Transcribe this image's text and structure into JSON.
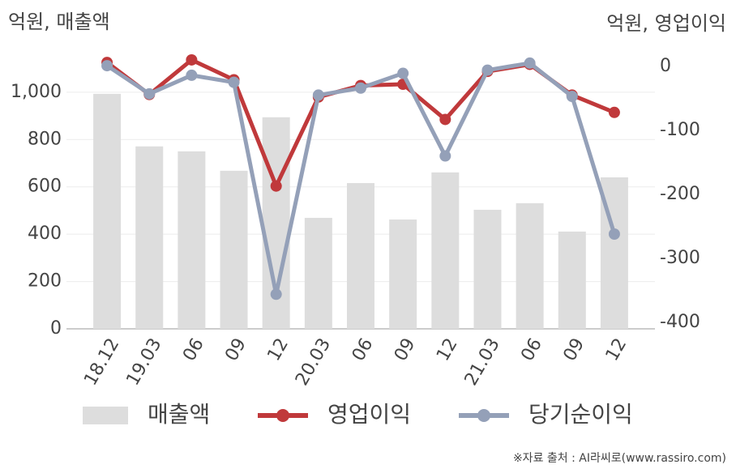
{
  "chart_data": {
    "type": "bar-line",
    "y_label": "억원, 매출액",
    "y2_label": "억원, 영업이익",
    "source": "※자료 출처 : AI라씨로(www.rassiro.com)",
    "categories": [
      "18.12",
      "19.03",
      "06",
      "09",
      "12",
      "20.03",
      "06",
      "09",
      "12",
      "21.03",
      "06",
      "09",
      "12"
    ],
    "series": [
      {
        "name": "매출액",
        "type": "bar",
        "color": "#dddddd",
        "values": [
          993,
          771,
          750,
          668,
          894,
          469,
          616,
          462,
          661,
          503,
          531,
          411,
          640
        ]
      },
      {
        "name": "영업이익",
        "type": "line",
        "axis": "y2",
        "color": "#c0393b",
        "values": [
          6,
          -44,
          10,
          -21,
          -187,
          -48,
          -30,
          -28,
          -83,
          -8,
          3,
          -45,
          -72
        ]
      },
      {
        "name": "당기순이익",
        "type": "line",
        "axis": "y2",
        "color": "#94a0b8",
        "values": [
          1,
          -43,
          -14,
          -25,
          -356,
          -45,
          -34,
          -11,
          -140,
          -6,
          5,
          -47,
          -262
        ]
      }
    ],
    "ylim": [
      0,
      1150
    ],
    "yticks": [
      0,
      200,
      400,
      600,
      800,
      {
        "value": 1000,
        "label": "1,000"
      }
    ],
    "y2lim": [
      -410,
      15
    ],
    "y2ticks": [
      -400,
      -300,
      -200,
      -100,
      0
    ],
    "grid": true
  }
}
